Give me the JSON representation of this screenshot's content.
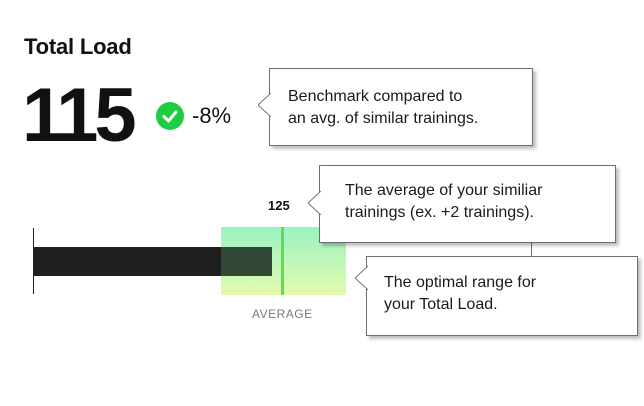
{
  "header": {
    "title": "Total Load"
  },
  "metric": {
    "value": "115",
    "change": "-8%",
    "status_color": "#1ecd43",
    "status_icon": "check-circle-icon"
  },
  "chart": {
    "average_value": "125",
    "average_label": "AVERAGE",
    "bar_color": "#202020",
    "marker_color": "#5ede4a"
  },
  "callouts": {
    "benchmark": {
      "line1": "Benchmark compared to",
      "line2": "an avg. of similar trainings."
    },
    "average": {
      "line1": "The average of your similiar",
      "line2": "trainings (ex. +2 trainings)."
    },
    "optimal": {
      "line1": "The optimal range for",
      "line2": "your Total Load."
    }
  }
}
